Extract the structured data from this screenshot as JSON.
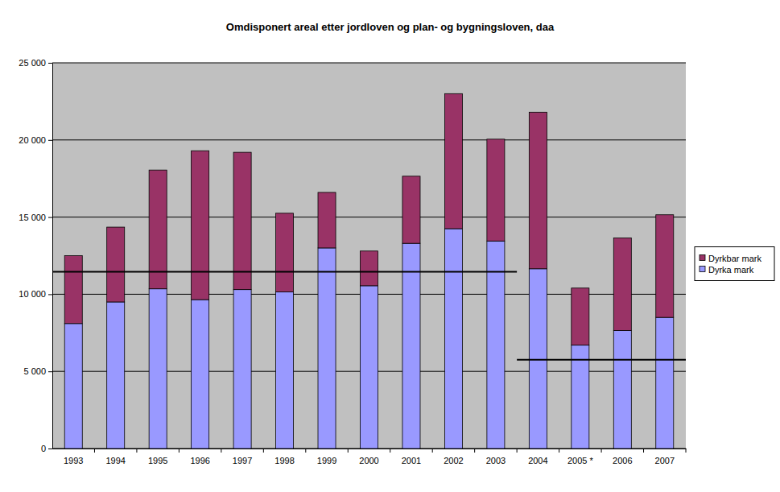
{
  "chart_data": {
    "type": "bar",
    "stacked": true,
    "title": "Omdisponert areal etter jordloven og plan- og bygningsloven, daa",
    "categories": [
      "1993",
      "1994",
      "1995",
      "1996",
      "1997",
      "1998",
      "1999",
      "2000",
      "2001",
      "2002",
      "2003",
      "2004",
      "2005 *",
      "2006",
      "2007"
    ],
    "series": [
      {
        "name": "Dyrka mark",
        "color": "#9999FF",
        "values": [
          8100,
          9500,
          10350,
          9650,
          10300,
          10150,
          13000,
          10550,
          13300,
          14250,
          13450,
          11650,
          6700,
          7650,
          8500
        ]
      },
      {
        "name": "Dyrkbar mark",
        "color": "#993366",
        "values": [
          4400,
          4850,
          7700,
          9650,
          8900,
          5100,
          3600,
          2250,
          4350,
          8750,
          6600,
          10150,
          3700,
          6000,
          6650
        ]
      }
    ],
    "ylim": [
      0,
      25000
    ],
    "yticks": [
      0,
      {
        "value": 5000,
        "label": "5 000"
      },
      {
        "value": 10000,
        "label": "10 000"
      },
      {
        "value": 15000,
        "label": "15 000"
      },
      {
        "value": 20000,
        "label": "20 000"
      },
      {
        "value": 25000,
        "label": "25 000"
      }
    ],
    "grid": true,
    "legend": "right",
    "reference_lines": [
      {
        "value": 11450,
        "categories": [
          "1993",
          "2003"
        ]
      },
      {
        "value": 5750,
        "categories": [
          "2004",
          "2007"
        ]
      }
    ]
  }
}
